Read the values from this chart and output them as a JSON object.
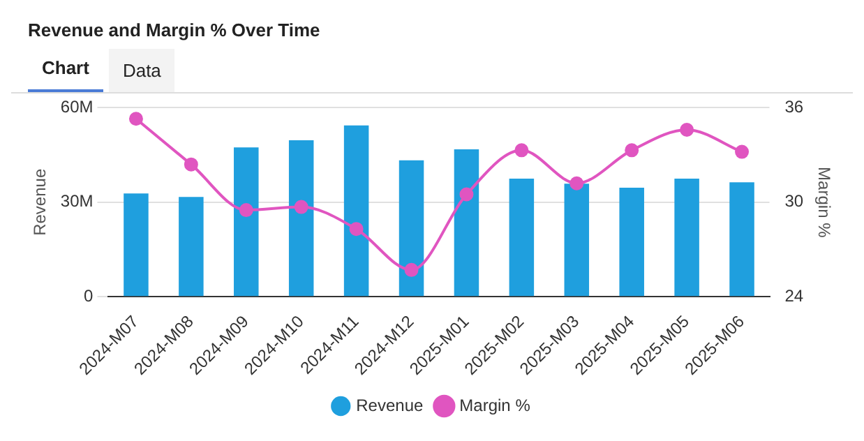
{
  "chart_data": {
    "type": "bar",
    "title": "Revenue and Margin % Over Time",
    "ylabel": "Revenue",
    "y2label": "Margin %",
    "annotations": [
      "Chart",
      "Data"
    ],
    "categories": [
      "2024-M07",
      "2024-M08",
      "2024-M09",
      "2024-M10",
      "2024-M11",
      "2024-M12",
      "2025-M01",
      "2025-M02",
      "2025-M03",
      "2025-M04",
      "2025-M05",
      "2025-M06"
    ],
    "series": [
      {
        "name": "Revenue",
        "color": "#1f9fde",
        "values": [
          32.8,
          31.7,
          47.4,
          49.7,
          54.4,
          43.3,
          46.8,
          37.5,
          35.9,
          34.6,
          37.5,
          36.3
        ]
      },
      {
        "name": "Margin %",
        "type": "line",
        "axis": "y2",
        "color": "#e055c0",
        "marker": "circle",
        "values": [
          35.3,
          32.4,
          29.5,
          29.7,
          28.3,
          25.7,
          30.5,
          33.3,
          31.2,
          33.3,
          34.6,
          33.2
        ]
      }
    ],
    "ylim": [
      0,
      60
    ],
    "yticks": [
      {
        "value": 0,
        "label": "0"
      },
      {
        "value": 30,
        "label": "30M"
      },
      {
        "value": 60,
        "label": "60M"
      }
    ],
    "y2lim": [
      24,
      36
    ],
    "y2ticks": [
      24,
      30,
      36
    ],
    "grid": "y",
    "legend": "bottom"
  }
}
